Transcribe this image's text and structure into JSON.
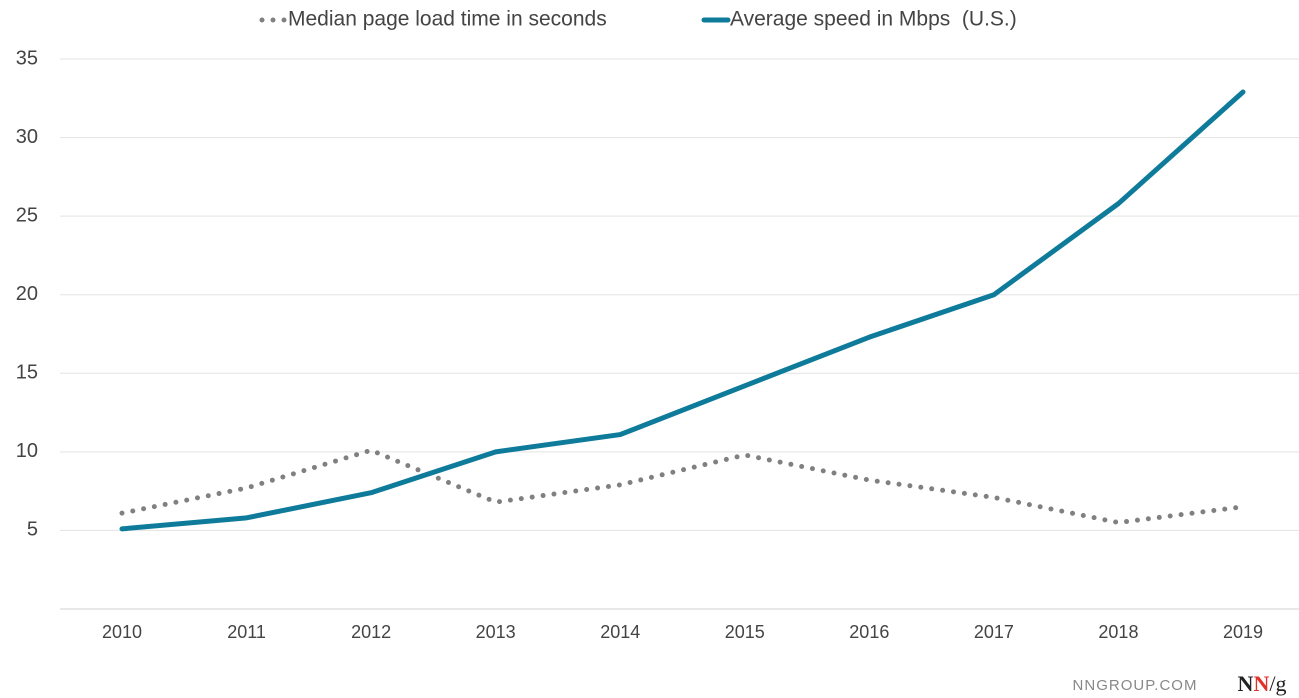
{
  "chart_data": {
    "type": "line",
    "categories": [
      "2010",
      "2011",
      "2012",
      "2013",
      "2014",
      "2015",
      "2016",
      "2017",
      "2018",
      "2019"
    ],
    "series": [
      {
        "name": "Median page load time in seconds",
        "color": "#808080",
        "line_style": "dotted",
        "values": [
          6.1,
          7.7,
          10.1,
          6.8,
          7.9,
          9.8,
          8.2,
          7.1,
          5.5,
          6.5
        ]
      },
      {
        "name": "Average speed in Mbps  (U.S.)",
        "color": "#0f7b9b",
        "line_style": "solid",
        "values": [
          5.1,
          5.8,
          7.4,
          10.0,
          11.1,
          14.2,
          17.3,
          20.0,
          25.8,
          32.9
        ]
      }
    ],
    "ylim": [
      0,
      35
    ],
    "yticks": [
      5,
      10,
      15,
      20,
      25,
      30,
      35
    ],
    "grid": true,
    "legend": "top"
  },
  "footer": {
    "site": "NNGROUP.COM",
    "logo": [
      "N",
      "N",
      "/g"
    ]
  }
}
